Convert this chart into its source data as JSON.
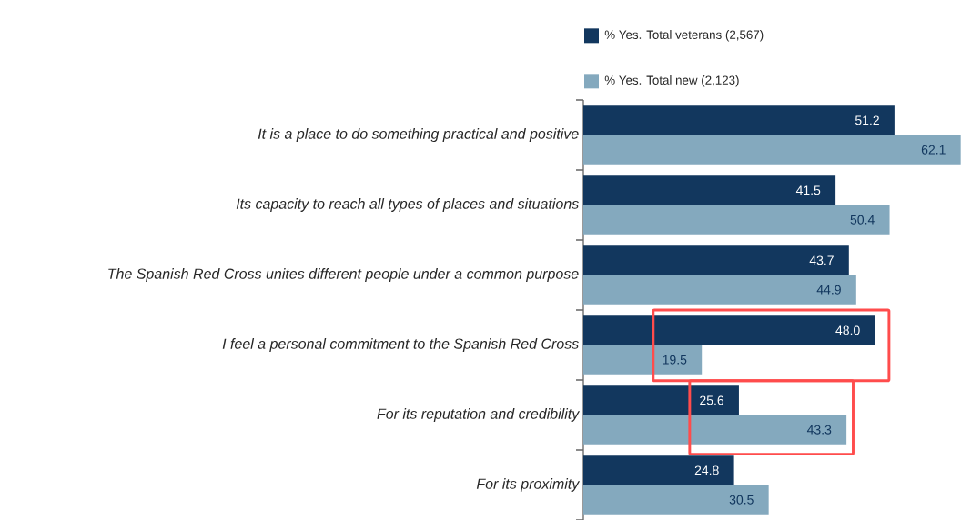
{
  "chart_data": {
    "type": "bar",
    "orientation": "horizontal",
    "legend": "top",
    "categories": [
      "It is a place to do something practical and positive",
      "Its capacity to reach all types of places and situations",
      "The Spanish Red Cross unites different people under a common purpose",
      "I feel a personal commitment to the Spanish Red Cross",
      "For its reputation and credibility",
      "For its proximity"
    ],
    "series": [
      {
        "name": "% Yes. Total veterans (2,567)",
        "color": "#12375e",
        "values": [
          51.2,
          41.5,
          43.7,
          48.0,
          25.6,
          24.8
        ],
        "value_labels": [
          "51.2",
          "41.5",
          "43.7",
          "48.0",
          "25.6",
          "24.8"
        ]
      },
      {
        "name": "% Yes. Total new (2,123)",
        "color": "#84a9be",
        "values": [
          62.1,
          50.4,
          44.9,
          19.5,
          43.3,
          30.5
        ],
        "value_labels": [
          "62.1",
          "50.4",
          "44.9",
          "19.5",
          "43.3",
          "30.5"
        ]
      }
    ]
  }
}
